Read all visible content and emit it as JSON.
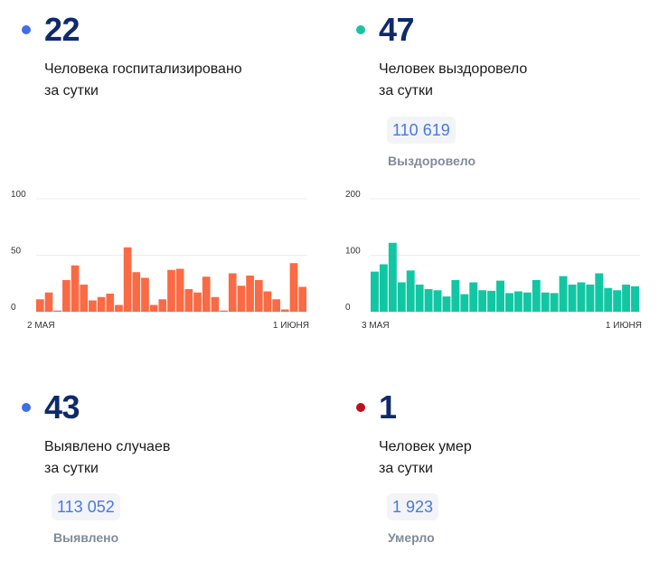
{
  "colors": {
    "blue_dot": "#3f6fe5",
    "teal_dot": "#1ec0a5",
    "red_dot": "#c0101d",
    "orange_bar": "#fa6a44",
    "teal_bar": "#11c7a3"
  },
  "cards": {
    "hospitalized": {
      "value": "22",
      "description": "Человека госпитализировано\nза сутки"
    },
    "recovered": {
      "value": "47",
      "description": "Человек выздоровело\nза сутки",
      "total": "110 619",
      "total_label": "Выздоровело"
    },
    "detected": {
      "value": "43",
      "description": "Выявлено случаев\nза сутки",
      "total": "113 052",
      "total_label": "Выявлено"
    },
    "died": {
      "value": "1",
      "description": "Человек умер\nза сутки",
      "total": "1 923",
      "total_label": "Умерло"
    }
  },
  "chart_data": [
    {
      "type": "bar",
      "x_start_label": "2 МАЯ",
      "x_end_label": "1 ИЮНЯ",
      "yticks": [
        0,
        50,
        100
      ],
      "ylim": [
        0,
        100
      ],
      "grid": true,
      "values": [
        11,
        17,
        1,
        28,
        41,
        24,
        10,
        13,
        16,
        6,
        57,
        35,
        30,
        6,
        11,
        37,
        38,
        20,
        17,
        31,
        13,
        1,
        34,
        23,
        32,
        28,
        18,
        11,
        2,
        43,
        22
      ]
    },
    {
      "type": "bar",
      "x_start_label": "3 МАЯ",
      "x_end_label": "1 ИЮНЯ",
      "yticks": [
        0,
        100,
        200
      ],
      "ylim": [
        0,
        200
      ],
      "grid": true,
      "values": [
        71,
        84,
        122,
        52,
        73,
        48,
        40,
        38,
        27,
        56,
        31,
        52,
        38,
        37,
        55,
        33,
        36,
        34,
        56,
        34,
        33,
        63,
        48,
        52,
        48,
        68,
        42,
        38,
        48,
        45
      ]
    }
  ]
}
